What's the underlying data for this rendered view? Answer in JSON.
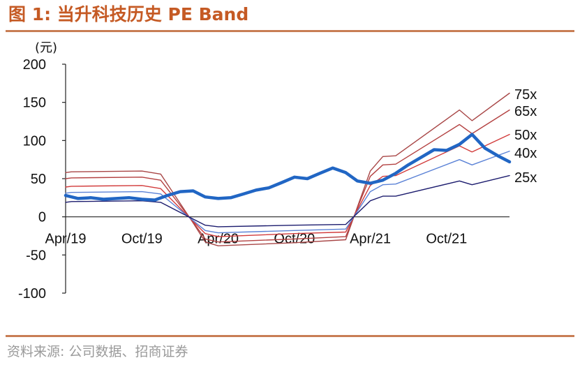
{
  "figure": {
    "title": "图 1: 当升科技历史 PE Band",
    "source": "资料来源: 公司数据、招商证券"
  },
  "chart_data": {
    "type": "line",
    "ylabel": "(元)",
    "ylim": [
      -100,
      200
    ],
    "yticks": [
      200,
      150,
      100,
      50,
      0,
      -50,
      -100
    ],
    "xticks": [
      "Apr/19",
      "Oct/19",
      "Apr/20",
      "Oct/20",
      "Apr/21",
      "Oct/21"
    ],
    "x_range": [
      "2019-04",
      "2022-03"
    ],
    "grid": false,
    "legend": "none",
    "band_labels": [
      "75x",
      "65x",
      "50x",
      "40x",
      "25x"
    ],
    "series": [
      {
        "name": "75x",
        "color": "#a84646",
        "points": [
          [
            "2019-04",
            58
          ],
          [
            "2019-04-15",
            59
          ],
          [
            "2019-10",
            60
          ],
          [
            "2019-11-15",
            56
          ],
          [
            "2020-02",
            -8
          ],
          [
            "2020-03",
            -33
          ],
          [
            "2020-04",
            -38
          ],
          [
            "2020-10",
            -34
          ],
          [
            "2021-02",
            -30
          ],
          [
            "2021-04",
            60
          ],
          [
            "2021-05",
            79
          ],
          [
            "2021-06",
            80
          ],
          [
            "2021-11",
            140
          ],
          [
            "2021-12",
            126
          ],
          [
            "2022-03",
            162
          ]
        ]
      },
      {
        "name": "65x",
        "color": "#b34141",
        "points": [
          [
            "2019-04",
            50
          ],
          [
            "2019-04-15",
            51
          ],
          [
            "2019-10",
            52
          ],
          [
            "2019-11-15",
            48
          ],
          [
            "2020-02",
            -7
          ],
          [
            "2020-03",
            -29
          ],
          [
            "2020-04",
            -33
          ],
          [
            "2020-10",
            -29
          ],
          [
            "2021-02",
            -26
          ],
          [
            "2021-04",
            53
          ],
          [
            "2021-05",
            68
          ],
          [
            "2021-06",
            69
          ],
          [
            "2021-11",
            121
          ],
          [
            "2021-12",
            109
          ],
          [
            "2022-03",
            140
          ]
        ]
      },
      {
        "name": "50x",
        "color": "#d23b3b",
        "points": [
          [
            "2019-04",
            39
          ],
          [
            "2019-04-15",
            40
          ],
          [
            "2019-10",
            41
          ],
          [
            "2019-11-15",
            37
          ],
          [
            "2020-02",
            -6
          ],
          [
            "2020-03",
            -22
          ],
          [
            "2020-04",
            -26
          ],
          [
            "2020-10",
            -22
          ],
          [
            "2021-02",
            -20
          ],
          [
            "2021-04",
            41
          ],
          [
            "2021-05",
            53
          ],
          [
            "2021-06",
            54
          ],
          [
            "2021-11",
            93
          ],
          [
            "2021-12",
            85
          ],
          [
            "2022-03",
            108
          ]
        ]
      },
      {
        "name": "40x",
        "color": "#5b82d6",
        "points": [
          [
            "2019-04",
            31
          ],
          [
            "2019-04-15",
            32
          ],
          [
            "2019-10",
            33
          ],
          [
            "2019-11-15",
            30
          ],
          [
            "2020-02",
            -5
          ],
          [
            "2020-03",
            -18
          ],
          [
            "2020-04",
            -21
          ],
          [
            "2020-10",
            -18
          ],
          [
            "2021-02",
            -16
          ],
          [
            "2021-04",
            33
          ],
          [
            "2021-05",
            42
          ],
          [
            "2021-06",
            43
          ],
          [
            "2021-11",
            75
          ],
          [
            "2021-12",
            68
          ],
          [
            "2022-03",
            86
          ]
        ]
      },
      {
        "name": "25x",
        "color": "#1c1c6e",
        "points": [
          [
            "2019-04",
            19
          ],
          [
            "2019-04-15",
            20
          ],
          [
            "2019-10",
            21
          ],
          [
            "2019-11-15",
            19
          ],
          [
            "2020-02",
            -3
          ],
          [
            "2020-03",
            -11
          ],
          [
            "2020-04",
            -13
          ],
          [
            "2020-10",
            -11
          ],
          [
            "2021-02",
            -10
          ],
          [
            "2021-04",
            21
          ],
          [
            "2021-05",
            27
          ],
          [
            "2021-06",
            27
          ],
          [
            "2021-11",
            47
          ],
          [
            "2021-12",
            42
          ],
          [
            "2022-03",
            54
          ]
        ]
      },
      {
        "name": "",
        "color": "#2166c4",
        "points": [
          [
            "2019-04",
            28
          ],
          [
            "2019-05",
            24
          ],
          [
            "2019-06",
            25
          ],
          [
            "2019-07",
            23
          ],
          [
            "2019-08",
            24
          ],
          [
            "2019-09",
            25
          ],
          [
            "2019-10",
            23
          ],
          [
            "2019-11",
            22
          ],
          [
            "2019-12",
            28
          ],
          [
            "2020-01",
            33
          ],
          [
            "2020-02",
            34
          ],
          [
            "2020-03",
            26
          ],
          [
            "2020-04",
            24
          ],
          [
            "2020-05",
            25
          ],
          [
            "2020-06",
            30
          ],
          [
            "2020-07",
            35
          ],
          [
            "2020-08",
            38
          ],
          [
            "2020-09",
            45
          ],
          [
            "2020-10",
            52
          ],
          [
            "2020-11",
            50
          ],
          [
            "2020-12",
            57
          ],
          [
            "2021-01",
            64
          ],
          [
            "2021-02",
            58
          ],
          [
            "2021-03",
            47
          ],
          [
            "2021-04",
            44
          ],
          [
            "2021-05",
            48
          ],
          [
            "2021-06",
            57
          ],
          [
            "2021-07",
            68
          ],
          [
            "2021-08",
            78
          ],
          [
            "2021-09",
            88
          ],
          [
            "2021-10",
            87
          ],
          [
            "2021-11",
            95
          ],
          [
            "2021-12",
            108
          ],
          [
            "2022-01",
            90
          ],
          [
            "2022-02",
            80
          ],
          [
            "2022-03",
            72
          ]
        ]
      }
    ]
  }
}
